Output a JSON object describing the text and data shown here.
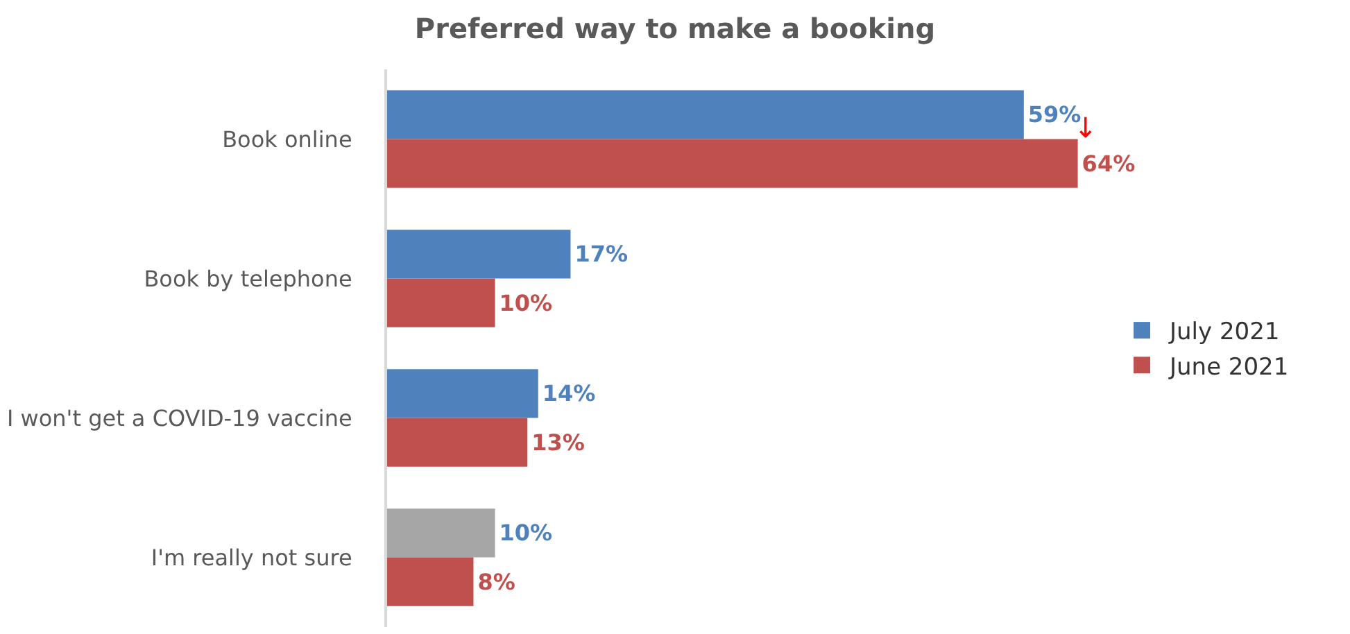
{
  "chart_data": {
    "type": "bar",
    "orientation": "horizontal",
    "title": "Preferred way to make a booking",
    "categories": [
      "Book online",
      "Book by telephone",
      "I won't get a COVID-19 vaccine",
      "I'm really not sure"
    ],
    "series": [
      {
        "name": "July 2021",
        "color": "#4f81bd",
        "colors": [
          "#4f81bd",
          "#4f81bd",
          "#4f81bd",
          "#a6a6a6"
        ],
        "values": [
          59,
          17,
          14,
          10
        ],
        "value_labels": [
          "59%",
          "17%",
          "14%",
          "10%"
        ]
      },
      {
        "name": "June 2021",
        "color": "#c0504d",
        "values": [
          64,
          10,
          13,
          8
        ],
        "value_labels": [
          "64%",
          "10%",
          "13%",
          "8%"
        ]
      }
    ],
    "legend": "right",
    "annotations": [
      "↓"
    ]
  }
}
